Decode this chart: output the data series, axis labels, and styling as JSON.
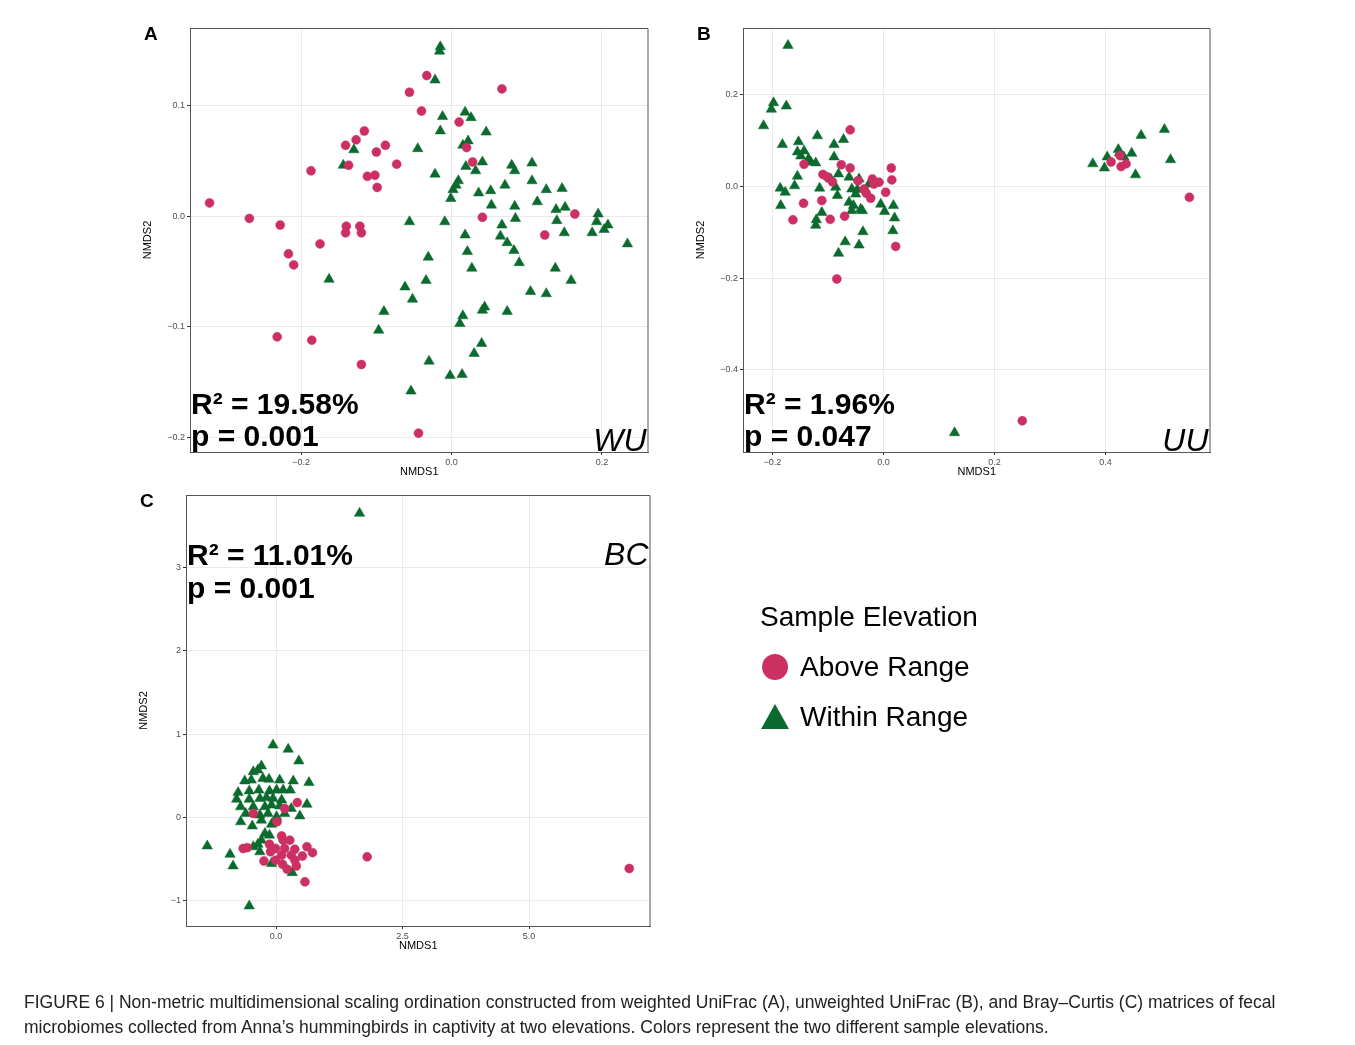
{
  "chart_data": [
    {
      "type": "scatter",
      "title": "A",
      "xlabel": "NMDS1",
      "ylabel": "NMDS2",
      "xlim": [
        -0.348,
        0.262
      ],
      "ylim": [
        -0.213,
        0.17
      ],
      "xticks": [
        {
          "value": -0.2,
          "label": "−0.2"
        },
        {
          "value": 0,
          "label": "0.0"
        },
        {
          "value": 0.2,
          "label": "0.2"
        }
      ],
      "yticks": [
        {
          "value": -0.2,
          "label": "−0.2"
        },
        {
          "value": -0.1,
          "label": "−0.1"
        },
        {
          "value": 0,
          "label": "0.0"
        },
        {
          "value": 0.1,
          "label": "0.1"
        }
      ],
      "grid": true,
      "annotations": [
        "R² = 19.58%",
        "p = 0.001",
        "WU"
      ],
      "series": [
        {
          "color": "#cc2f62",
          "marker": "circle",
          "x": [
            -0.033,
            -0.056,
            0.067,
            -0.04,
            0.01,
            -0.116,
            -0.127,
            -0.141,
            -0.088,
            -0.1,
            0.02,
            0.028,
            -0.137,
            -0.073,
            -0.187,
            -0.112,
            -0.102,
            -0.099,
            -0.322,
            -0.269,
            -0.228,
            -0.14,
            -0.141,
            -0.122,
            -0.12,
            -0.175,
            -0.217,
            -0.21,
            0.041,
            0.164,
            0.124,
            -0.232,
            -0.186,
            -0.12,
            -0.044
          ],
          "values": [
            0.127,
            0.112,
            0.115,
            0.095,
            0.085,
            0.077,
            0.069,
            0.064,
            0.064,
            0.058,
            0.062,
            0.049,
            0.046,
            0.047,
            0.041,
            0.036,
            0.037,
            0.026,
            0.012,
            -0.002,
            -0.008,
            -0.009,
            -0.015,
            -0.009,
            -0.015,
            -0.025,
            -0.034,
            -0.044,
            -0.001,
            0.002,
            -0.017,
            -0.109,
            -0.112,
            -0.134,
            -0.196
          ]
        },
        {
          "color": "#0b6a2e",
          "marker": "triangle",
          "x": [
            -0.015,
            -0.016,
            -0.022,
            -0.012,
            0.018,
            0.026,
            -0.015,
            0.046,
            0.022,
            0.015,
            -0.045,
            -0.13,
            -0.144,
            0.019,
            0.041,
            0.032,
            -0.022,
            0.08,
            0.084,
            0.107,
            0.009,
            0.006,
            0.002,
            -0.001,
            0.036,
            0.052,
            0.071,
            0.107,
            0.126,
            0.147,
            0.114,
            0.053,
            0.084,
            0.139,
            0.151,
            0.195,
            -0.056,
            -0.009,
            0.085,
            0.14,
            0.193,
            0.208,
            0.203,
            0.187,
            0.067,
            0.018,
            0.15,
            0.065,
            0.074,
            0.021,
            0.083,
            0.234,
            -0.031,
            0.09,
            0.027,
            0.138,
            -0.163,
            -0.034,
            0.159,
            -0.062,
            -0.052,
            0.105,
            0.126,
            -0.09,
            0.044,
            0.041,
            0.074,
            0.015,
            0.011,
            -0.097,
            0.04,
            0.03,
            -0.03,
            -0.002,
            0.014,
            -0.054
          ],
          "values": [
            0.153,
            0.149,
            0.123,
            0.09,
            0.094,
            0.089,
            0.077,
            0.076,
            0.068,
            0.064,
            0.061,
            0.06,
            0.046,
            0.045,
            0.049,
            0.041,
            0.038,
            0.046,
            0.041,
            0.048,
            0.032,
            0.028,
            0.024,
            0.016,
            0.021,
            0.023,
            0.028,
            0.032,
            0.024,
            0.025,
            0.013,
            0.01,
            0.009,
            0.006,
            0.008,
            0.002,
            -0.005,
            -0.005,
            -0.002,
            -0.004,
            -0.005,
            -0.008,
            -0.012,
            -0.015,
            -0.008,
            -0.017,
            -0.015,
            -0.018,
            -0.024,
            -0.032,
            -0.031,
            -0.025,
            -0.037,
            -0.042,
            -0.047,
            -0.047,
            -0.057,
            -0.058,
            -0.058,
            -0.064,
            -0.075,
            -0.068,
            -0.07,
            -0.086,
            -0.082,
            -0.085,
            -0.086,
            -0.09,
            -0.097,
            -0.103,
            -0.115,
            -0.124,
            -0.131,
            -0.144,
            -0.143,
            -0.158
          ]
        }
      ]
    },
    {
      "type": "scatter",
      "title": "B",
      "xlabel": "NMDS1",
      "ylabel": "NMDS2",
      "xlim": [
        -0.253,
        0.589
      ],
      "ylim": [
        -0.579,
        0.345
      ],
      "xticks": [
        {
          "value": -0.2,
          "label": "−0.2"
        },
        {
          "value": 0,
          "label": "0.0"
        },
        {
          "value": 0.2,
          "label": "0.2"
        },
        {
          "value": 0.4,
          "label": "0.4"
        }
      ],
      "yticks": [
        {
          "value": -0.4,
          "label": "−0.4"
        },
        {
          "value": -0.2,
          "label": "−0.2"
        },
        {
          "value": 0,
          "label": "0.0"
        },
        {
          "value": 0.2,
          "label": "0.2"
        }
      ],
      "grid": true,
      "annotations": [
        "R² = 1.96%",
        "p = 0.047",
        "UU"
      ],
      "series": [
        {
          "color": "#cc2f62",
          "marker": "circle",
          "x": [
            -0.06,
            -0.143,
            -0.076,
            -0.06,
            0.014,
            -0.109,
            -0.102,
            -0.092,
            -0.046,
            -0.02,
            -0.008,
            -0.017,
            0.015,
            -0.035,
            -0.031,
            -0.023,
            0.004,
            -0.111,
            -0.144,
            -0.163,
            -0.096,
            -0.07,
            0.022,
            -0.084,
            0.41,
            0.428,
            0.437,
            0.426,
            0.551,
            0.25
          ],
          "values": [
            0.123,
            0.048,
            0.047,
            0.04,
            0.04,
            0.026,
            0.021,
            0.01,
            0.012,
            0.016,
            0.009,
            0.005,
            0.014,
            -0.006,
            -0.015,
            -0.026,
            -0.013,
            -0.031,
            -0.037,
            -0.073,
            -0.072,
            -0.065,
            -0.131,
            -0.202,
            0.053,
            0.043,
            0.049,
            0.067,
            -0.024,
            -0.511
          ]
        },
        {
          "color": "#0b6a2e",
          "marker": "triangle",
          "x": [
            -0.172,
            -0.198,
            -0.202,
            -0.175,
            -0.216,
            -0.119,
            -0.072,
            -0.153,
            -0.089,
            -0.182,
            -0.155,
            -0.143,
            -0.149,
            -0.135,
            -0.131,
            -0.122,
            -0.089,
            -0.155,
            -0.081,
            -0.095,
            -0.16,
            -0.186,
            -0.177,
            -0.115,
            -0.086,
            -0.062,
            -0.044,
            -0.026,
            -0.057,
            -0.047,
            -0.05,
            -0.083,
            -0.185,
            -0.111,
            -0.121,
            -0.122,
            -0.062,
            -0.054,
            -0.057,
            -0.041,
            -0.038,
            -0.005,
            0.002,
            0.018,
            0.02,
            -0.037,
            0.017,
            -0.069,
            -0.044,
            -0.081,
            0.377,
            0.398,
            0.403,
            0.423,
            0.425,
            0.433,
            0.447,
            0.464,
            0.506,
            0.517,
            0.454,
            0.128
          ],
          "values": [
            0.307,
            0.182,
            0.168,
            0.175,
            0.132,
            0.11,
            0.102,
            0.097,
            0.091,
            0.091,
            0.075,
            0.077,
            0.066,
            0.06,
            0.053,
            0.051,
            0.064,
            0.022,
            0.027,
            0.016,
            0.001,
            -0.004,
            -0.013,
            -0.004,
            -0.002,
            0.02,
            0.016,
            0.005,
            -0.006,
            -0.007,
            -0.017,
            -0.02,
            -0.042,
            -0.057,
            -0.073,
            -0.085,
            -0.035,
            -0.042,
            -0.053,
            -0.05,
            -0.053,
            -0.039,
            -0.055,
            -0.042,
            -0.069,
            -0.099,
            -0.097,
            -0.121,
            -0.128,
            -0.146,
            0.049,
            0.04,
            0.064,
            0.08,
            0.073,
            0.064,
            0.072,
            0.111,
            0.124,
            0.058,
            0.025,
            -0.537
          ]
        }
      ]
    },
    {
      "type": "scatter",
      "title": "C",
      "xlabel": "NMDS1",
      "ylabel": "NMDS2",
      "xlim": [
        -1.78,
        7.4
      ],
      "ylim": [
        -1.3,
        3.87
      ],
      "xticks": [
        {
          "value": 0,
          "label": "0.0"
        },
        {
          "value": 2.5,
          "label": "2.5"
        },
        {
          "value": 5,
          "label": "5.0"
        }
      ],
      "yticks": [
        {
          "value": -1,
          "label": "−1"
        },
        0,
        1,
        2,
        3
      ],
      "grid": true,
      "legend": "right",
      "legend_title": "Sample Elevation",
      "annotations": [
        "R² = 11.01%",
        "p = 0.001",
        "BC",
        "FIGURE 6 | Non-metric multidimensional scaling ordination constructed from weighted UniFrac (A), unweighted UniFrac (B), and Bray–Curtis (C) matrices of fecal microbiomes collected from Anna’s hummingbirds in captivity at two elevations. Colors represent the two different sample elevations."
      ],
      "series": [
        {
          "name": "Above Range",
          "color": "#cc2f62",
          "marker": "circle",
          "x": [
            0.42,
            -0.45,
            0.17,
            0.02,
            0.11,
            0.14,
            0.27,
            -0.13,
            -0.65,
            -0.57,
            -0.01,
            0.17,
            0.37,
            0.61,
            0.72,
            -0.11,
            0.11,
            0.3,
            0.52,
            -0.24,
            -0.01,
            0.13,
            0.37,
            0.4,
            0.22,
            0.57,
            1.8,
            6.98
          ],
          "values": [
            0.18,
            0.05,
            0.11,
            -0.05,
            -0.22,
            -0.27,
            -0.27,
            -0.32,
            -0.37,
            -0.36,
            -0.37,
            -0.37,
            -0.38,
            -0.35,
            -0.42,
            -0.41,
            -0.45,
            -0.45,
            -0.46,
            -0.52,
            -0.51,
            -0.56,
            -0.51,
            -0.58,
            -0.62,
            -0.77,
            -0.47,
            -0.61
          ]
        },
        {
          "name": "Within Range",
          "color": "#0b6a2e",
          "marker": "triangle",
          "x": [
            -0.06,
            0.24,
            0.45,
            -0.29,
            -0.36,
            -0.45,
            -0.62,
            -0.49,
            -0.26,
            -0.14,
            0.07,
            0.34,
            0.65,
            -0.75,
            -0.53,
            -0.34,
            -0.13,
            0.01,
            0.14,
            0.28,
            -0.78,
            -0.53,
            -0.32,
            -0.19,
            -0.06,
            0.11,
            -0.7,
            -0.45,
            -0.22,
            -0.09,
            0.07,
            0.3,
            0.61,
            -0.6,
            -0.32,
            -0.16,
            0.01,
            0.17,
            0.47,
            -0.7,
            -0.47,
            -0.29,
            -0.09,
            -0.22,
            -0.13,
            -0.29,
            -0.36,
            -0.45,
            -1.36,
            -0.91,
            -0.85,
            -0.32,
            -0.09,
            0.32,
            1.65,
            -0.53
          ],
          "values": [
            0.87,
            0.82,
            0.68,
            0.62,
            0.57,
            0.55,
            0.44,
            0.45,
            0.47,
            0.46,
            0.45,
            0.44,
            0.42,
            0.3,
            0.32,
            0.33,
            0.32,
            0.33,
            0.33,
            0.33,
            0.22,
            0.22,
            0.23,
            0.24,
            0.23,
            0.21,
            0.13,
            0.13,
            0.13,
            0.15,
            0.14,
            0.11,
            0.16,
            0.05,
            0.03,
            0.05,
            0.01,
            0.05,
            0.02,
            -0.05,
            -0.1,
            -0.03,
            -0.08,
            -0.19,
            -0.21,
            -0.27,
            -0.32,
            -0.35,
            -0.34,
            -0.44,
            -0.58,
            -0.41,
            -0.55,
            -0.66,
            3.65,
            -1.06
          ]
        }
      ]
    }
  ]
}
